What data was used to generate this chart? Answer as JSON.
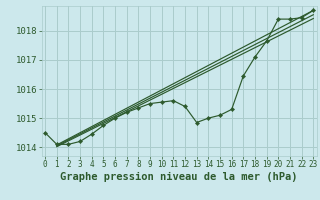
{
  "title": "Graphe pression niveau de la mer (hPa)",
  "bg_color": "#cce8ec",
  "grid_color": "#aacccc",
  "line_color": "#2d5a2d",
  "hours": [
    0,
    1,
    2,
    3,
    4,
    5,
    6,
    7,
    8,
    9,
    10,
    11,
    12,
    13,
    14,
    15,
    16,
    17,
    18,
    19,
    20,
    21,
    22,
    23
  ],
  "pressure": [
    1014.5,
    1014.1,
    1014.1,
    1014.2,
    1014.45,
    1014.75,
    1015.0,
    1015.2,
    1015.35,
    1015.5,
    1015.55,
    1015.6,
    1015.4,
    1014.85,
    1015.0,
    1015.1,
    1015.3,
    1016.45,
    1017.1,
    1017.65,
    1018.4,
    1018.4,
    1018.45,
    1018.7
  ],
  "ylim": [
    1013.7,
    1018.85
  ],
  "yticks": [
    1014,
    1015,
    1016,
    1017,
    1018
  ],
  "ytop_label": "1018",
  "xlim": [
    -0.3,
    23.3
  ],
  "xtick_fontsize": 5.5,
  "ytick_fontsize": 6.5,
  "title_fontsize": 7.5,
  "marker": "D",
  "marker_size": 2.2,
  "trend_line1": [
    1,
    1014.08,
    23,
    1018.7
  ],
  "trend_line2": [
    1,
    1014.05,
    23,
    1018.55
  ],
  "trend_line3": [
    1,
    1014.02,
    23,
    1018.42
  ]
}
